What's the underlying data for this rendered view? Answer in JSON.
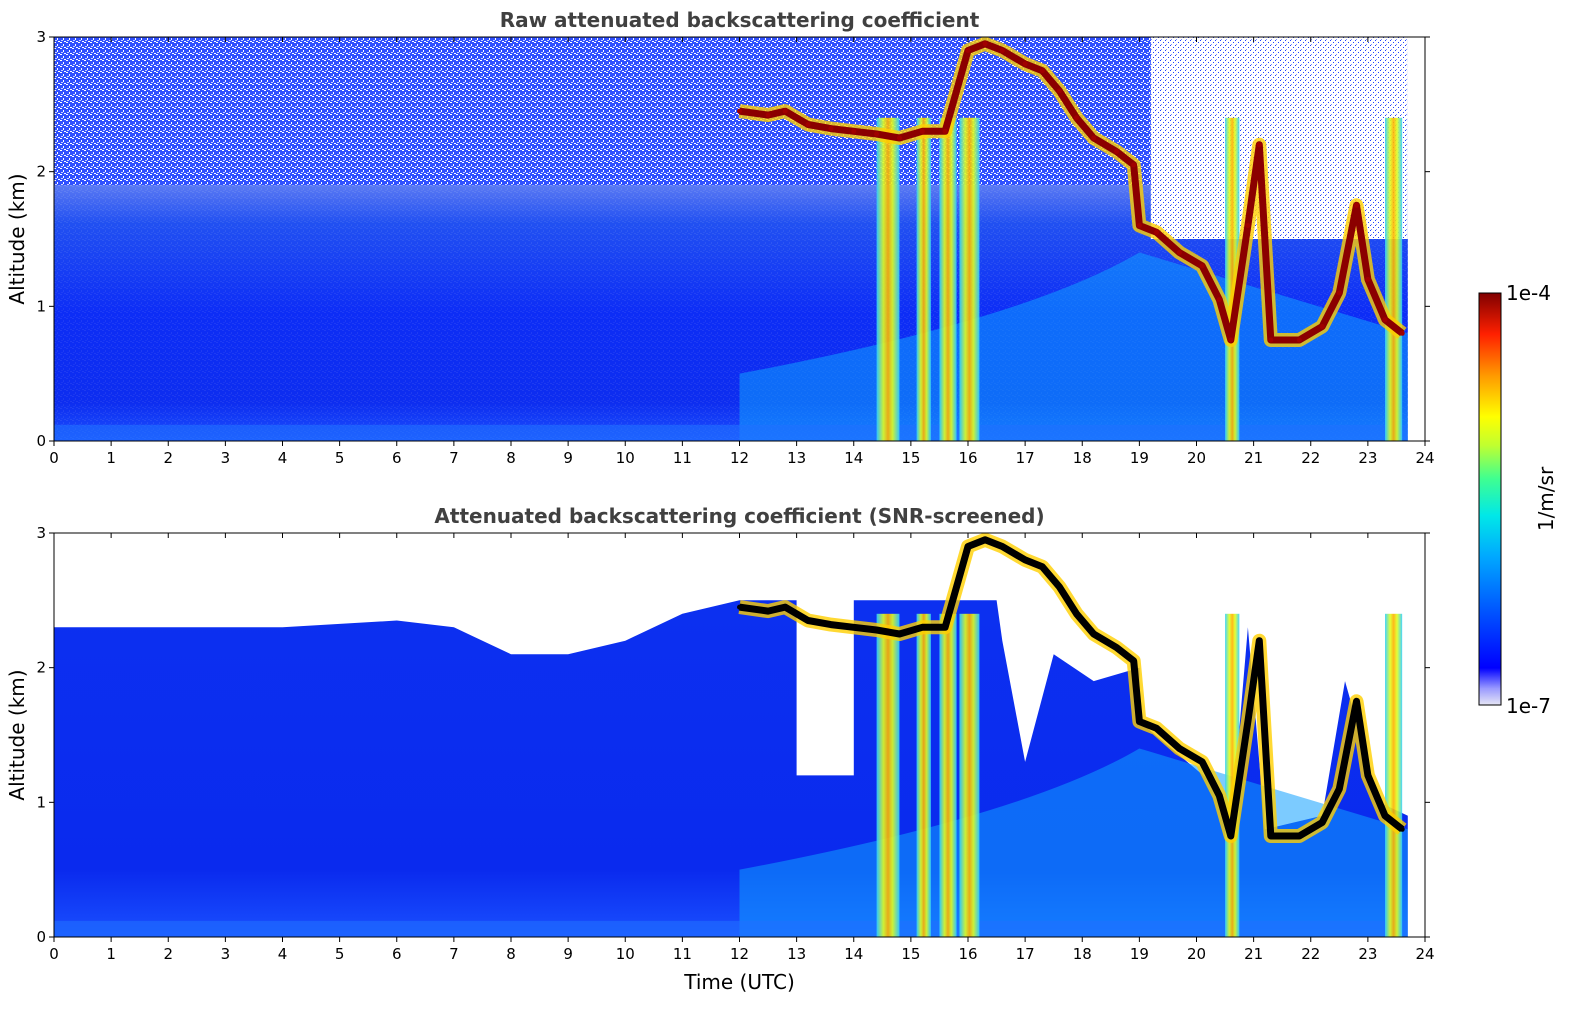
{
  "chart_data": [
    {
      "type": "heatmap",
      "title": "Raw attenuated backscattering coefficient",
      "xlabel": "",
      "ylabel": "Altitude (km)",
      "xlim": [
        0,
        24
      ],
      "ylim": [
        0,
        3
      ],
      "xticks": [
        0,
        1,
        2,
        3,
        4,
        5,
        6,
        7,
        8,
        9,
        10,
        11,
        12,
        13,
        14,
        15,
        16,
        17,
        18,
        19,
        20,
        21,
        22,
        23,
        24
      ],
      "yticks": [
        0,
        1,
        2,
        3
      ],
      "screened": false,
      "features": {
        "cloud_layer": [
          [
            12.0,
            2.45
          ],
          [
            12.5,
            2.42
          ],
          [
            12.8,
            2.45
          ],
          [
            13.2,
            2.35
          ],
          [
            13.6,
            2.32
          ],
          [
            14.0,
            2.3
          ],
          [
            14.4,
            2.28
          ],
          [
            14.8,
            2.25
          ],
          [
            15.2,
            2.3
          ],
          [
            15.6,
            2.3
          ],
          [
            16.0,
            2.9
          ],
          [
            16.3,
            2.95
          ],
          [
            16.6,
            2.9
          ],
          [
            17.0,
            2.8
          ],
          [
            17.3,
            2.75
          ],
          [
            17.6,
            2.6
          ],
          [
            17.9,
            2.4
          ],
          [
            18.2,
            2.25
          ],
          [
            18.6,
            2.15
          ],
          [
            18.9,
            2.05
          ],
          [
            19.0,
            1.6
          ],
          [
            19.3,
            1.55
          ],
          [
            19.7,
            1.4
          ],
          [
            20.1,
            1.3
          ],
          [
            20.4,
            1.05
          ],
          [
            20.6,
            0.75
          ],
          [
            20.9,
            1.6
          ],
          [
            21.1,
            2.2
          ],
          [
            21.3,
            0.75
          ],
          [
            21.8,
            0.75
          ],
          [
            22.2,
            0.85
          ],
          [
            22.5,
            1.1
          ],
          [
            22.8,
            1.75
          ],
          [
            23.0,
            1.2
          ],
          [
            23.3,
            0.9
          ],
          [
            23.6,
            0.8
          ]
        ],
        "precip_shafts": [
          [
            14.4,
            14.8
          ],
          [
            15.1,
            15.35
          ],
          [
            15.5,
            15.8
          ],
          [
            15.85,
            16.2
          ],
          [
            20.5,
            20.75
          ],
          [
            23.3,
            23.6
          ]
        ],
        "data_end_hour": 23.7
      }
    },
    {
      "type": "heatmap",
      "title": "Attenuated backscattering coefficient (SNR-screened)",
      "xlabel": "Time (UTC)",
      "ylabel": "Altitude (km)",
      "xlim": [
        0,
        24
      ],
      "ylim": [
        0,
        3
      ],
      "xticks": [
        0,
        1,
        2,
        3,
        4,
        5,
        6,
        7,
        8,
        9,
        10,
        11,
        12,
        13,
        14,
        15,
        16,
        17,
        18,
        19,
        20,
        21,
        22,
        23,
        24
      ],
      "yticks": [
        0,
        1,
        2,
        3
      ],
      "screened": true,
      "features": {
        "cloud_layer": [
          [
            12.0,
            2.45
          ],
          [
            12.5,
            2.42
          ],
          [
            12.8,
            2.45
          ],
          [
            13.2,
            2.35
          ],
          [
            13.6,
            2.32
          ],
          [
            14.0,
            2.3
          ],
          [
            14.4,
            2.28
          ],
          [
            14.8,
            2.25
          ],
          [
            15.2,
            2.3
          ],
          [
            15.6,
            2.3
          ],
          [
            16.0,
            2.9
          ],
          [
            16.3,
            2.95
          ],
          [
            16.6,
            2.9
          ],
          [
            17.0,
            2.8
          ],
          [
            17.3,
            2.75
          ],
          [
            17.6,
            2.6
          ],
          [
            17.9,
            2.4
          ],
          [
            18.2,
            2.25
          ],
          [
            18.6,
            2.15
          ],
          [
            18.9,
            2.05
          ],
          [
            19.0,
            1.6
          ],
          [
            19.3,
            1.55
          ],
          [
            19.7,
            1.4
          ],
          [
            20.1,
            1.3
          ],
          [
            20.4,
            1.05
          ],
          [
            20.6,
            0.75
          ],
          [
            20.9,
            1.6
          ],
          [
            21.1,
            2.2
          ],
          [
            21.3,
            0.75
          ],
          [
            21.8,
            0.75
          ],
          [
            22.2,
            0.85
          ],
          [
            22.5,
            1.1
          ],
          [
            22.8,
            1.75
          ],
          [
            23.0,
            1.2
          ],
          [
            23.3,
            0.9
          ],
          [
            23.6,
            0.8
          ]
        ],
        "precip_shafts": [
          [
            14.4,
            14.8
          ],
          [
            15.1,
            15.35
          ],
          [
            15.5,
            15.8
          ],
          [
            15.85,
            16.2
          ],
          [
            20.5,
            20.75
          ],
          [
            23.3,
            23.6
          ]
        ],
        "data_end_hour": 23.7
      }
    }
  ],
  "colorbar": {
    "max_label": "1e-4",
    "min_label": "1e-7",
    "unit_label": "1/m/sr",
    "colormap": "jet",
    "scale": "log"
  },
  "colors": {
    "background_blue": "#1030ff",
    "cloud_core": "#8b0000",
    "screened_edge": "#000000",
    "title_gray": "#404040"
  }
}
